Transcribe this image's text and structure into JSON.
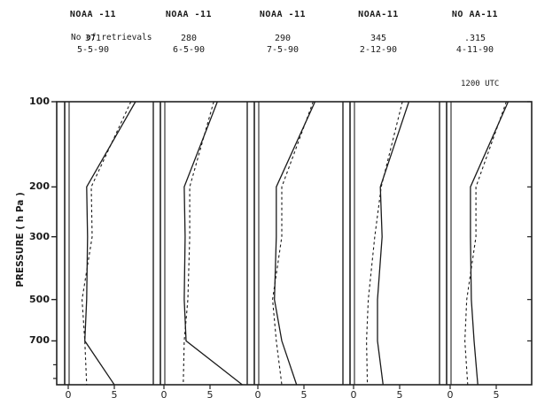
{
  "chart_data": {
    "type": "line",
    "ylabel": "PRESSURE ( h Pa )",
    "y_scale": "log",
    "ylim": [
      1000,
      100
    ],
    "y_ticks": [
      100,
      200,
      300,
      500,
      700
    ],
    "x_tick_labels": [
      "0",
      "5"
    ],
    "xlim": [
      0,
      8
    ],
    "retrievals_label": "No of retrievals",
    "time_label": "1200 UTC",
    "panels": [
      {
        "satellite": "NOAA -11",
        "retrievals": "371",
        "date": "5-5-90",
        "series": [
          {
            "style": "solid",
            "values": [
              [
                7.3,
                100
              ],
              [
                2.0,
                200
              ],
              [
                2.1,
                300
              ],
              [
                2.0,
                500
              ],
              [
                1.8,
                700
              ],
              [
                5.0,
                1000
              ]
            ]
          },
          {
            "style": "dashed",
            "values": [
              [
                6.8,
                100
              ],
              [
                2.5,
                200
              ],
              [
                2.6,
                300
              ],
              [
                1.5,
                500
              ],
              [
                1.8,
                700
              ],
              [
                2.0,
                1000
              ]
            ]
          }
        ]
      },
      {
        "satellite": "NOAA -11",
        "retrievals": "280",
        "date": "6-5-90",
        "series": [
          {
            "style": "solid",
            "values": [
              [
                5.8,
                100
              ],
              [
                2.2,
                200
              ],
              [
                2.3,
                300
              ],
              [
                2.2,
                500
              ],
              [
                2.4,
                700
              ],
              [
                8.5,
                1000
              ]
            ]
          },
          {
            "style": "dashed",
            "values": [
              [
                5.4,
                100
              ],
              [
                2.8,
                200
              ],
              [
                2.8,
                300
              ],
              [
                2.6,
                500
              ],
              [
                2.2,
                700
              ],
              [
                2.1,
                1000
              ]
            ]
          }
        ]
      },
      {
        "satellite": "NOAA -11",
        "retrievals": "290",
        "date": "7-5-90",
        "series": [
          {
            "style": "solid",
            "values": [
              [
                6.2,
                100
              ],
              [
                2.0,
                200
              ],
              [
                2.0,
                300
              ],
              [
                1.8,
                500
              ],
              [
                2.6,
                700
              ],
              [
                4.2,
                1000
              ]
            ]
          },
          {
            "style": "dashed",
            "values": [
              [
                6.0,
                100
              ],
              [
                2.6,
                200
              ],
              [
                2.6,
                300
              ],
              [
                1.6,
                500
              ],
              [
                2.0,
                700
              ],
              [
                2.6,
                1000
              ]
            ]
          }
        ]
      },
      {
        "satellite": "NOAA-11",
        "retrievals": "345",
        "date": "2-12-90",
        "series": [
          {
            "style": "solid",
            "values": [
              [
                6.0,
                100
              ],
              [
                2.9,
                200
              ],
              [
                3.1,
                300
              ],
              [
                2.6,
                500
              ],
              [
                2.6,
                700
              ],
              [
                3.2,
                1000
              ]
            ]
          },
          {
            "style": "dashed",
            "values": [
              [
                5.3,
                100
              ],
              [
                3.0,
                200
              ],
              [
                2.3,
                300
              ],
              [
                1.6,
                500
              ],
              [
                1.4,
                700
              ],
              [
                1.5,
                1000
              ]
            ]
          }
        ]
      },
      {
        "satellite": "NO AA-11",
        "retrievals": ".315",
        "date": "4-11-90",
        "series": [
          {
            "style": "solid",
            "values": [
              [
                6.3,
                100
              ],
              [
                2.2,
                200
              ],
              [
                2.2,
                300
              ],
              [
                2.3,
                500
              ],
              [
                2.6,
                700
              ],
              [
                3.0,
                1000
              ]
            ]
          },
          {
            "style": "dashed",
            "values": [
              [
                6.1,
                100
              ],
              [
                2.8,
                200
              ],
              [
                2.8,
                300
              ],
              [
                1.8,
                500
              ],
              [
                1.6,
                700
              ],
              [
                1.9,
                1000
              ]
            ]
          }
        ]
      }
    ]
  }
}
